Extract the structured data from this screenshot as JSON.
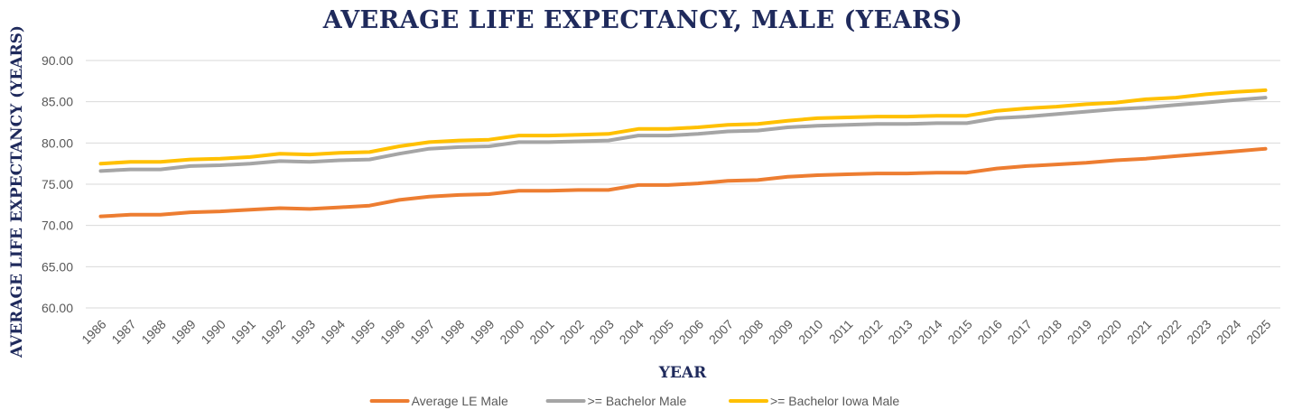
{
  "chart_data": {
    "type": "line",
    "title": "AVERAGE LIFE EXPECTANCY, MALE (YEARS)",
    "xlabel": "YEAR",
    "ylabel": "AVERAGE LIFE EXPECTANCY (YEARS)",
    "ylim": [
      60,
      90
    ],
    "yticks": [
      "60.00",
      "65.00",
      "70.00",
      "75.00",
      "80.00",
      "85.00",
      "90.00"
    ],
    "grid": "horizontal",
    "legend_position": "bottom",
    "categories": [
      "1986",
      "1987",
      "1988",
      "1989",
      "1990",
      "1991",
      "1992",
      "1993",
      "1994",
      "1995",
      "1996",
      "1997",
      "1998",
      "1999",
      "2000",
      "2001",
      "2002",
      "2003",
      "2004",
      "2005",
      "2006",
      "2007",
      "2008",
      "2009",
      "2010",
      "2011",
      "2012",
      "2013",
      "2014",
      "2015",
      "2016",
      "2017",
      "2018",
      "2019",
      "2020",
      "2021",
      "2022",
      "2023",
      "2024",
      "2025"
    ],
    "series": [
      {
        "name": "Average LE Male",
        "color": "#ED7D31",
        "values": [
          71.1,
          71.3,
          71.3,
          71.6,
          71.7,
          71.9,
          72.1,
          72.0,
          72.2,
          72.4,
          73.1,
          73.5,
          73.7,
          73.8,
          74.2,
          74.2,
          74.3,
          74.3,
          74.9,
          74.9,
          75.1,
          75.4,
          75.5,
          75.9,
          76.1,
          76.2,
          76.3,
          76.3,
          76.4,
          76.4,
          76.9,
          77.2,
          77.4,
          77.6,
          77.9,
          78.1,
          78.4,
          78.7,
          79.0,
          79.3
        ]
      },
      {
        "name": ">= Bachelor Male",
        "color": "#A5A5A5",
        "values": [
          76.6,
          76.8,
          76.8,
          77.2,
          77.3,
          77.5,
          77.8,
          77.7,
          77.9,
          78.0,
          78.7,
          79.3,
          79.5,
          79.6,
          80.1,
          80.1,
          80.2,
          80.3,
          80.9,
          80.9,
          81.1,
          81.4,
          81.5,
          81.9,
          82.1,
          82.2,
          82.3,
          82.3,
          82.4,
          82.4,
          83.0,
          83.2,
          83.5,
          83.8,
          84.1,
          84.3,
          84.6,
          84.9,
          85.2,
          85.5
        ]
      },
      {
        "name": ">= Bachelor Iowa Male",
        "color": "#FFC000",
        "values": [
          77.5,
          77.7,
          77.7,
          78.0,
          78.1,
          78.3,
          78.7,
          78.6,
          78.8,
          78.9,
          79.6,
          80.1,
          80.3,
          80.4,
          80.9,
          80.9,
          81.0,
          81.1,
          81.7,
          81.7,
          81.9,
          82.2,
          82.3,
          82.7,
          83.0,
          83.1,
          83.2,
          83.2,
          83.3,
          83.3,
          83.9,
          84.2,
          84.4,
          84.7,
          84.9,
          85.3,
          85.5,
          85.9,
          86.2,
          86.4
        ]
      }
    ]
  }
}
